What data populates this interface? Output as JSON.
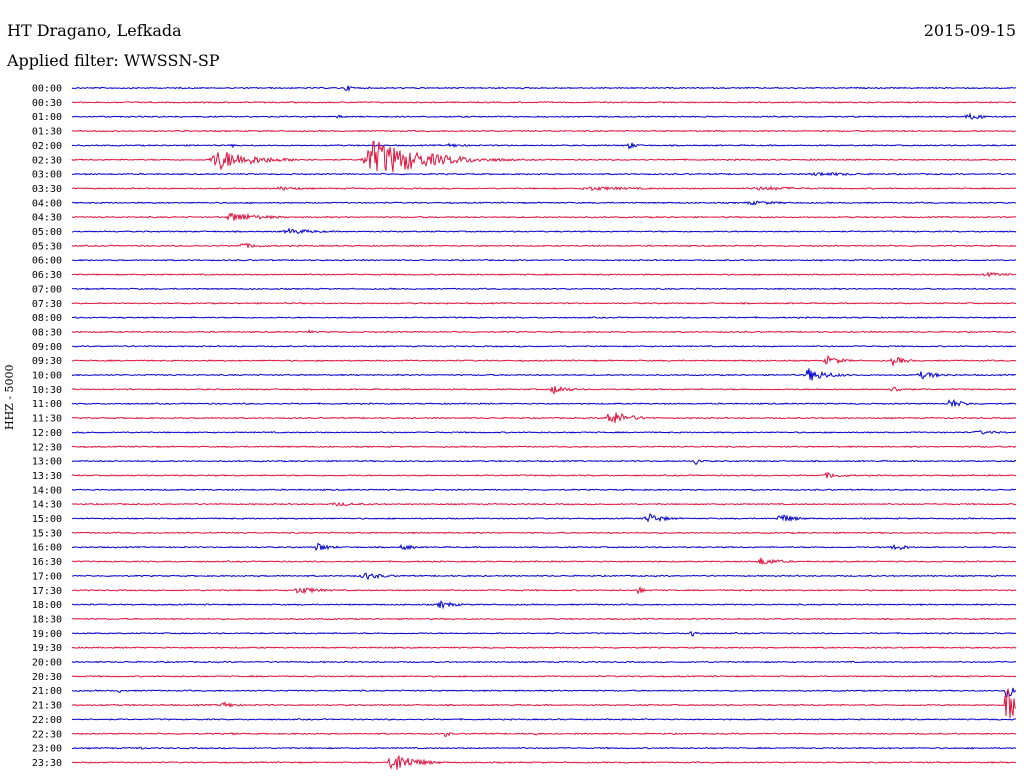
{
  "header": {
    "station": "HT Dragano, Lefkada",
    "filter": "Applied filter: WWSSN-SP",
    "date": "2015-09-15"
  },
  "chart_data": {
    "type": "line",
    "title": "HT Dragano, Lefkada",
    "subtitle": "Applied filter: WWSSN-SP",
    "date": "2015-09-15",
    "ylabel": "HHZ - 5000",
    "colors": [
      "#0000cc",
      "#e0103c"
    ],
    "rows": [
      {
        "label": "00:00",
        "events": [
          {
            "t": 0.29,
            "a": 3,
            "w": 0.01
          }
        ]
      },
      {
        "label": "00:30",
        "events": []
      },
      {
        "label": "01:00",
        "events": [
          {
            "t": 0.28,
            "a": 2,
            "w": 0.01
          },
          {
            "t": 0.95,
            "a": 3,
            "w": 0.02
          }
        ]
      },
      {
        "label": "01:30",
        "events": []
      },
      {
        "label": "02:00",
        "events": [
          {
            "t": 0.17,
            "a": 2,
            "w": 0.005
          },
          {
            "t": 0.4,
            "a": 2,
            "w": 0.02
          },
          {
            "t": 0.59,
            "a": 4,
            "w": 0.008
          }
        ]
      },
      {
        "label": "02:30",
        "events": [
          {
            "t": 0.155,
            "a": 11,
            "w": 0.035
          },
          {
            "t": 0.32,
            "a": 20,
            "w": 0.05
          }
        ]
      },
      {
        "label": "03:00",
        "events": [
          {
            "t": 0.79,
            "a": 2,
            "w": 0.05
          }
        ]
      },
      {
        "label": "03:30",
        "events": [
          {
            "t": 0.22,
            "a": 2,
            "w": 0.03
          },
          {
            "t": 0.55,
            "a": 2,
            "w": 0.06
          },
          {
            "t": 0.73,
            "a": 2,
            "w": 0.06
          }
        ]
      },
      {
        "label": "04:00",
        "events": [
          {
            "t": 0.72,
            "a": 2,
            "w": 0.04
          }
        ]
      },
      {
        "label": "04:30",
        "events": [
          {
            "t": 0.17,
            "a": 5,
            "w": 0.03
          }
        ]
      },
      {
        "label": "05:00",
        "events": [
          {
            "t": 0.23,
            "a": 3,
            "w": 0.03
          }
        ]
      },
      {
        "label": "05:30",
        "events": [
          {
            "t": 0.18,
            "a": 3,
            "w": 0.02
          }
        ]
      },
      {
        "label": "06:00",
        "events": []
      },
      {
        "label": "06:30",
        "events": [
          {
            "t": 0.97,
            "a": 2,
            "w": 0.03
          }
        ]
      },
      {
        "label": "07:00",
        "events": []
      },
      {
        "label": "07:30",
        "events": []
      },
      {
        "label": "08:00",
        "events": []
      },
      {
        "label": "08:30",
        "events": [
          {
            "t": 0.25,
            "a": 2,
            "w": 0.008
          }
        ]
      },
      {
        "label": "09:00",
        "events": []
      },
      {
        "label": "09:30",
        "events": [
          {
            "t": 0.8,
            "a": 5,
            "w": 0.015
          },
          {
            "t": 0.87,
            "a": 5,
            "w": 0.012
          }
        ]
      },
      {
        "label": "10:00",
        "events": [
          {
            "t": 0.78,
            "a": 7,
            "w": 0.02
          },
          {
            "t": 0.9,
            "a": 4,
            "w": 0.02
          }
        ]
      },
      {
        "label": "10:30",
        "events": [
          {
            "t": 0.51,
            "a": 5,
            "w": 0.015
          },
          {
            "t": 0.87,
            "a": 3,
            "w": 0.015
          }
        ]
      },
      {
        "label": "11:00",
        "events": [
          {
            "t": 0.93,
            "a": 5,
            "w": 0.015
          }
        ]
      },
      {
        "label": "11:30",
        "events": [
          {
            "t": 0.57,
            "a": 8,
            "w": 0.02
          }
        ]
      },
      {
        "label": "12:00",
        "events": [
          {
            "t": 0.96,
            "a": 2,
            "w": 0.03
          }
        ]
      },
      {
        "label": "12:30",
        "events": []
      },
      {
        "label": "13:00",
        "events": [
          {
            "t": 0.66,
            "a": 5,
            "w": 0.006
          }
        ]
      },
      {
        "label": "13:30",
        "events": [
          {
            "t": 0.8,
            "a": 3,
            "w": 0.02
          }
        ]
      },
      {
        "label": "14:00",
        "events": []
      },
      {
        "label": "14:30",
        "events": [
          {
            "t": 0.28,
            "a": 2,
            "w": 0.03
          }
        ]
      },
      {
        "label": "15:00",
        "events": [
          {
            "t": 0.61,
            "a": 6,
            "w": 0.015
          },
          {
            "t": 0.75,
            "a": 5,
            "w": 0.015
          }
        ]
      },
      {
        "label": "15:30",
        "events": []
      },
      {
        "label": "16:00",
        "events": [
          {
            "t": 0.26,
            "a": 5,
            "w": 0.012
          },
          {
            "t": 0.35,
            "a": 4,
            "w": 0.01
          },
          {
            "t": 0.87,
            "a": 5,
            "w": 0.012
          }
        ]
      },
      {
        "label": "16:30",
        "events": [
          {
            "t": 0.73,
            "a": 4,
            "w": 0.02
          }
        ]
      },
      {
        "label": "17:00",
        "events": [
          {
            "t": 0.31,
            "a": 4,
            "w": 0.02
          }
        ]
      },
      {
        "label": "17:30",
        "events": [
          {
            "t": 0.24,
            "a": 4,
            "w": 0.02
          },
          {
            "t": 0.6,
            "a": 6,
            "w": 0.004
          }
        ]
      },
      {
        "label": "18:00",
        "events": [
          {
            "t": 0.39,
            "a": 4,
            "w": 0.015
          }
        ]
      },
      {
        "label": "18:30",
        "events": []
      },
      {
        "label": "19:00",
        "events": [
          {
            "t": 0.655,
            "a": 6,
            "w": 0.006
          }
        ]
      },
      {
        "label": "19:30",
        "events": []
      },
      {
        "label": "20:00",
        "events": []
      },
      {
        "label": "20:30",
        "events": []
      },
      {
        "label": "21:00",
        "events": [
          {
            "t": 0.05,
            "a": 2,
            "w": 0.006
          },
          {
            "t": 0.99,
            "a": 8,
            "w": 0.01
          }
        ]
      },
      {
        "label": "21:30",
        "events": [
          {
            "t": 0.16,
            "a": 3,
            "w": 0.015
          },
          {
            "t": 0.99,
            "a": 22,
            "w": 0.01
          }
        ]
      },
      {
        "label": "22:00",
        "events": []
      },
      {
        "label": "22:30",
        "events": [
          {
            "t": 0.17,
            "a": 2,
            "w": 0.006
          },
          {
            "t": 0.395,
            "a": 4,
            "w": 0.005
          },
          {
            "t": 0.49,
            "a": 2,
            "w": 0.005
          }
        ]
      },
      {
        "label": "23:00",
        "events": [
          {
            "t": 0.07,
            "a": 2,
            "w": 0.008
          }
        ]
      },
      {
        "label": "23:30",
        "events": [
          {
            "t": 0.34,
            "a": 12,
            "w": 0.02
          }
        ]
      }
    ]
  }
}
